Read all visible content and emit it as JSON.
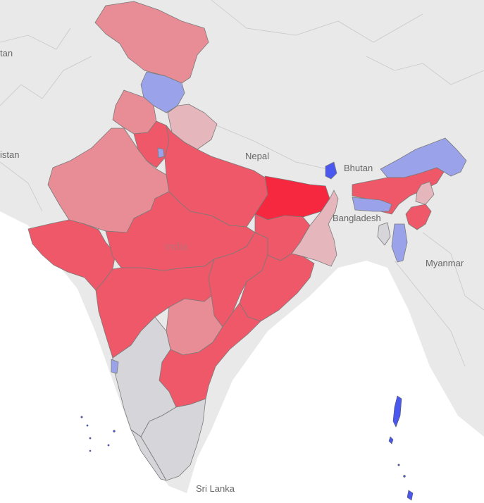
{
  "labels": {
    "country_main": "India",
    "neighbor_nepal": "Nepal",
    "neighbor_bhutan": "Bhutan",
    "neighbor_bangladesh": "Bangladesh",
    "neighbor_myanmar": "Myanmar",
    "neighbor_srilanka": "Sri Lanka",
    "neighbor_pakistan_partial": "istan",
    "neighbor_afghanistan_partial": "tan"
  },
  "colors": {
    "background_land": "#e9e9e9",
    "sea": "#ffffff",
    "no_data": "#d6d6da",
    "strong_red": "#f5283f",
    "red": "#ee5868",
    "light_red": "#e88d96",
    "pale_red": "#e5b7bc",
    "blue": "#4a58f0",
    "light_blue": "#9aa3ea"
  },
  "regions": [
    {
      "name": "Jammu and Kashmir",
      "color": "#e88d96"
    },
    {
      "name": "Ladakh",
      "color": "#e88d96"
    },
    {
      "name": "Himachal Pradesh",
      "color": "#9aa3ea"
    },
    {
      "name": "Punjab",
      "color": "#e88d96"
    },
    {
      "name": "Haryana",
      "color": "#ee5868"
    },
    {
      "name": "Uttarakhand",
      "color": "#e5b7bc"
    },
    {
      "name": "Rajasthan",
      "color": "#e88d96"
    },
    {
      "name": "Uttar Pradesh",
      "color": "#ee5868"
    },
    {
      "name": "Bihar",
      "color": "#f5283f"
    },
    {
      "name": "Gujarat",
      "color": "#ee5868"
    },
    {
      "name": "Madhya Pradesh",
      "color": "#ee5868"
    },
    {
      "name": "Maharashtra",
      "color": "#ee5868"
    },
    {
      "name": "Chhattisgarh",
      "color": "#ee5868"
    },
    {
      "name": "Jharkhand",
      "color": "#ee5868"
    },
    {
      "name": "West Bengal",
      "color": "#e5b7bc"
    },
    {
      "name": "Odisha",
      "color": "#ee5868"
    },
    {
      "name": "Telangana",
      "color": "#e88d96"
    },
    {
      "name": "Andhra Pradesh",
      "color": "#ee5868"
    },
    {
      "name": "Karnataka",
      "color": "#d6d6da"
    },
    {
      "name": "Tamil Nadu",
      "color": "#d6d6da"
    },
    {
      "name": "Kerala",
      "color": "#d6d6da"
    },
    {
      "name": "Goa",
      "color": "#9aa3ea"
    },
    {
      "name": "Sikkim",
      "color": "#4a58f0"
    },
    {
      "name": "Arunachal Pradesh",
      "color": "#9aa3ea"
    },
    {
      "name": "Assam",
      "color": "#ee5868"
    },
    {
      "name": "Nagaland",
      "color": "#e5b7bc"
    },
    {
      "name": "Meghalaya",
      "color": "#9aa3ea"
    },
    {
      "name": "Manipur",
      "color": "#ee5868"
    },
    {
      "name": "Mizoram",
      "color": "#9aa3ea"
    },
    {
      "name": "Tripura",
      "color": "#d6d6da"
    },
    {
      "name": "Delhi",
      "color": "#9aa3ea"
    },
    {
      "name": "Andaman and Nicobar Islands",
      "color": "#4a58f0"
    },
    {
      "name": "Lakshadweep",
      "color": "#4a58f0"
    }
  ]
}
